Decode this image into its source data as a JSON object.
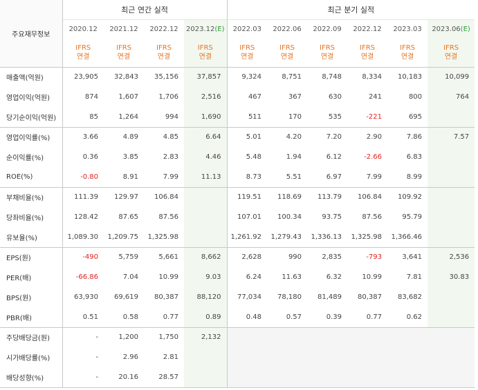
{
  "header": {
    "label_column": "주요재무정보",
    "annual_group": "최근 연간 실적",
    "quarter_group": "최근 분기 실적",
    "standard_line1": "IFRS",
    "standard_line2": "연결",
    "estimate_mark": "(E)"
  },
  "periods": [
    {
      "label": "2020.12",
      "estimate": false
    },
    {
      "label": "2021.12",
      "estimate": false
    },
    {
      "label": "2022.12",
      "estimate": false
    },
    {
      "label": "2023.12",
      "estimate": true
    },
    {
      "label": "2022.03",
      "estimate": false
    },
    {
      "label": "2022.06",
      "estimate": false
    },
    {
      "label": "2022.09",
      "estimate": false
    },
    {
      "label": "2022.12",
      "estimate": false
    },
    {
      "label": "2023.03",
      "estimate": false
    },
    {
      "label": "2023.06",
      "estimate": true
    }
  ],
  "rows": [
    {
      "label": "매출액(억원)",
      "values": [
        "23,905",
        "32,843",
        "35,156",
        "37,857",
        "9,324",
        "8,751",
        "8,748",
        "8,334",
        "10,183",
        "10,099"
      ]
    },
    {
      "label": "영업이익(억원)",
      "values": [
        "874",
        "1,607",
        "1,706",
        "2,516",
        "467",
        "367",
        "630",
        "241",
        "800",
        "764"
      ]
    },
    {
      "label": "당기순이익(억원)",
      "values": [
        "85",
        "1,264",
        "994",
        "1,690",
        "511",
        "170",
        "535",
        "-221",
        "695",
        ""
      ]
    },
    {
      "label": "영업이익률(%)",
      "values": [
        "3.66",
        "4.89",
        "4.85",
        "6.64",
        "5.01",
        "4.20",
        "7.20",
        "2.90",
        "7.86",
        "7.57"
      ]
    },
    {
      "label": "순이익률(%)",
      "values": [
        "0.36",
        "3.85",
        "2.83",
        "4.46",
        "5.48",
        "1.94",
        "6.12",
        "-2.66",
        "6.83",
        ""
      ]
    },
    {
      "label": "ROE(%)",
      "values": [
        "-0.80",
        "8.91",
        "7.99",
        "11.13",
        "8.73",
        "5.51",
        "6.97",
        "7.99",
        "8.99",
        ""
      ]
    },
    {
      "label": "부채비율(%)",
      "values": [
        "111.39",
        "129.97",
        "106.84",
        "",
        "119.51",
        "118.69",
        "113.79",
        "106.84",
        "109.92",
        ""
      ]
    },
    {
      "label": "당좌비율(%)",
      "values": [
        "128.42",
        "87.65",
        "87.56",
        "",
        "107.01",
        "100.34",
        "93.75",
        "87.56",
        "95.79",
        ""
      ]
    },
    {
      "label": "유보율(%)",
      "values": [
        "1,089.30",
        "1,209.75",
        "1,325.98",
        "",
        "1,261.92",
        "1,279.43",
        "1,336.13",
        "1,325.98",
        "1,366.46",
        ""
      ]
    },
    {
      "label": "EPS(원)",
      "values": [
        "-490",
        "5,759",
        "5,661",
        "8,662",
        "2,628",
        "990",
        "2,835",
        "-793",
        "3,641",
        "2,536"
      ]
    },
    {
      "label": "PER(배)",
      "values": [
        "-66.86",
        "7.04",
        "10.99",
        "9.03",
        "6.24",
        "11.63",
        "6.32",
        "10.99",
        "7.81",
        "30.83"
      ]
    },
    {
      "label": "BPS(원)",
      "values": [
        "63,930",
        "69,619",
        "80,387",
        "88,120",
        "77,034",
        "78,180",
        "81,489",
        "80,387",
        "83,682",
        ""
      ]
    },
    {
      "label": "PBR(배)",
      "values": [
        "0.51",
        "0.58",
        "0.77",
        "0.89",
        "0.48",
        "0.57",
        "0.39",
        "0.77",
        "0.62",
        ""
      ]
    },
    {
      "label": "주당배당금(원)",
      "values": [
        "-",
        "1,200",
        "1,750",
        "2,132",
        "",
        "",
        "",
        "",
        "",
        ""
      ]
    },
    {
      "label": "시가배당률(%)",
      "values": [
        "-",
        "2.96",
        "2.81",
        "",
        "",
        "",
        "",
        "",
        "",
        ""
      ]
    },
    {
      "label": "배당성향(%)",
      "values": [
        "-",
        "20.16",
        "28.57",
        "",
        "",
        "",
        "",
        "",
        "",
        ""
      ]
    }
  ],
  "colors": {
    "standard_text": "#e8731f",
    "estimate_mark": "#2e9b3a",
    "negative_value": "#e0221f",
    "estimate_column_bg": "#f2f8f0",
    "empty_cell_bg": "#f5f5f5"
  }
}
